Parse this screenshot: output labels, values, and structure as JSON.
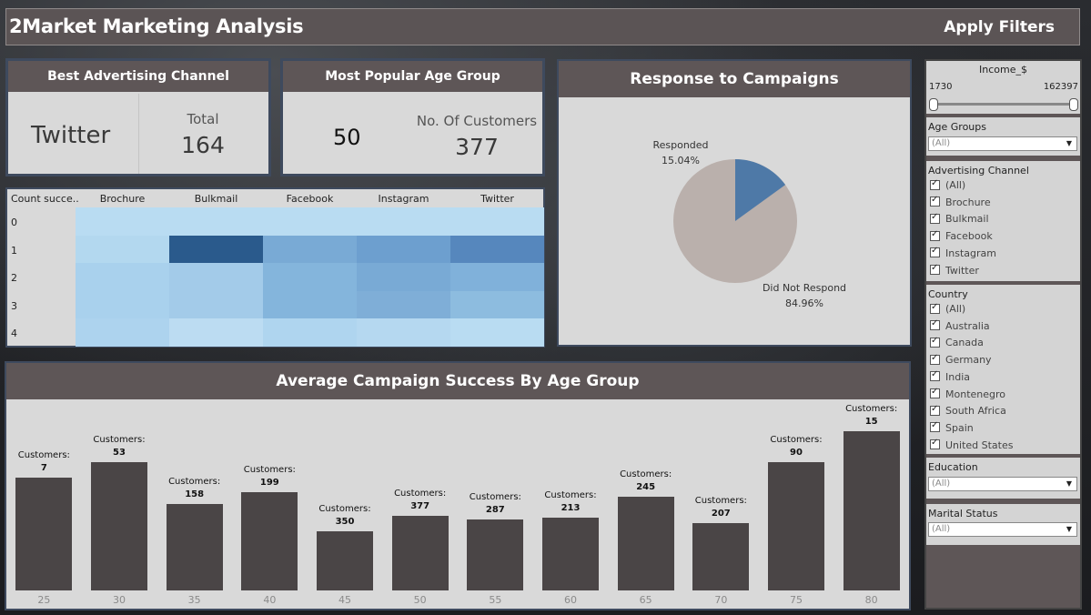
{
  "header": {
    "title": "2Market Marketing Analysis",
    "apply_filters": "Apply Filters"
  },
  "best_channel": {
    "title": "Best Advertising Channel",
    "value": "Twitter",
    "total_label": "Total",
    "total_value": "164"
  },
  "popular_age": {
    "title": "Most Popular Age Group",
    "value": "50",
    "customers_label": "No. Of Customers",
    "customers_value": "377"
  },
  "heatmap": {
    "row_header": "Count succe..",
    "columns": [
      "Brochure",
      "Bulkmail",
      "Facebook",
      "Instagram",
      "Twitter"
    ],
    "rows": [
      "0",
      "1",
      "2",
      "3",
      "4"
    ],
    "colors": [
      [
        "#b9dcf2",
        "#b9dcf2",
        "#b9dcf2",
        "#b9dcf2",
        "#b9dcf2"
      ],
      [
        "#b3d8ef",
        "#2a5a8c",
        "#79aad5",
        "#6d9fcf",
        "#5687bd"
      ],
      [
        "#a9d1ed",
        "#a3cbe9",
        "#84b5dc",
        "#79aad5",
        "#80b1da"
      ],
      [
        "#a9d1ed",
        "#a3cbe9",
        "#84b5dc",
        "#7faed7",
        "#8dbcdf"
      ],
      [
        "#add3ee",
        "#bcdcf2",
        "#afd5ef",
        "#b5d8f0",
        "#b9dcf2"
      ]
    ]
  },
  "response": {
    "title": "Response to Campaigns",
    "responded_label": "Responded",
    "responded_pct": "15.04%",
    "not_label": "Did Not Respond",
    "not_pct": "84.96%",
    "responded_value": 15.04,
    "responded_color": "#4e79a7",
    "not_color": "#bab0ac"
  },
  "filters": {
    "income": {
      "label": "Income_$",
      "min": "1730",
      "max": "162397"
    },
    "age_groups": {
      "label": "Age Groups",
      "value": "(All)"
    },
    "advertising_channel": {
      "label": "Advertising Channel",
      "options": [
        "(All)",
        "Brochure",
        "Bulkmail",
        "Facebook",
        "Instagram",
        "Twitter"
      ]
    },
    "country": {
      "label": "Country",
      "options": [
        "(All)",
        "Australia",
        "Canada",
        "Germany",
        "India",
        "Montenegro",
        "South Africa",
        "Spain",
        "United States"
      ]
    },
    "education": {
      "label": "Education",
      "value": "(All)"
    },
    "marital_status": {
      "label": "Marital Status",
      "value": "(All)"
    }
  },
  "chart_data": {
    "type": "bar",
    "title": "Average Campaign Success By Age Group",
    "categories": [
      "25",
      "30",
      "35",
      "40",
      "45",
      "50",
      "55",
      "60",
      "65",
      "70",
      "75",
      "80"
    ],
    "values": [
      0.59,
      0.67,
      0.45,
      0.51,
      0.31,
      0.39,
      0.37,
      0.38,
      0.49,
      0.35,
      0.67,
      0.83
    ],
    "customers": [
      "7",
      "53",
      "158",
      "199",
      "350",
      "377",
      "287",
      "213",
      "245",
      "207",
      "90",
      "15"
    ],
    "customer_label": "Customers:",
    "bar_color": "#4a4546"
  }
}
